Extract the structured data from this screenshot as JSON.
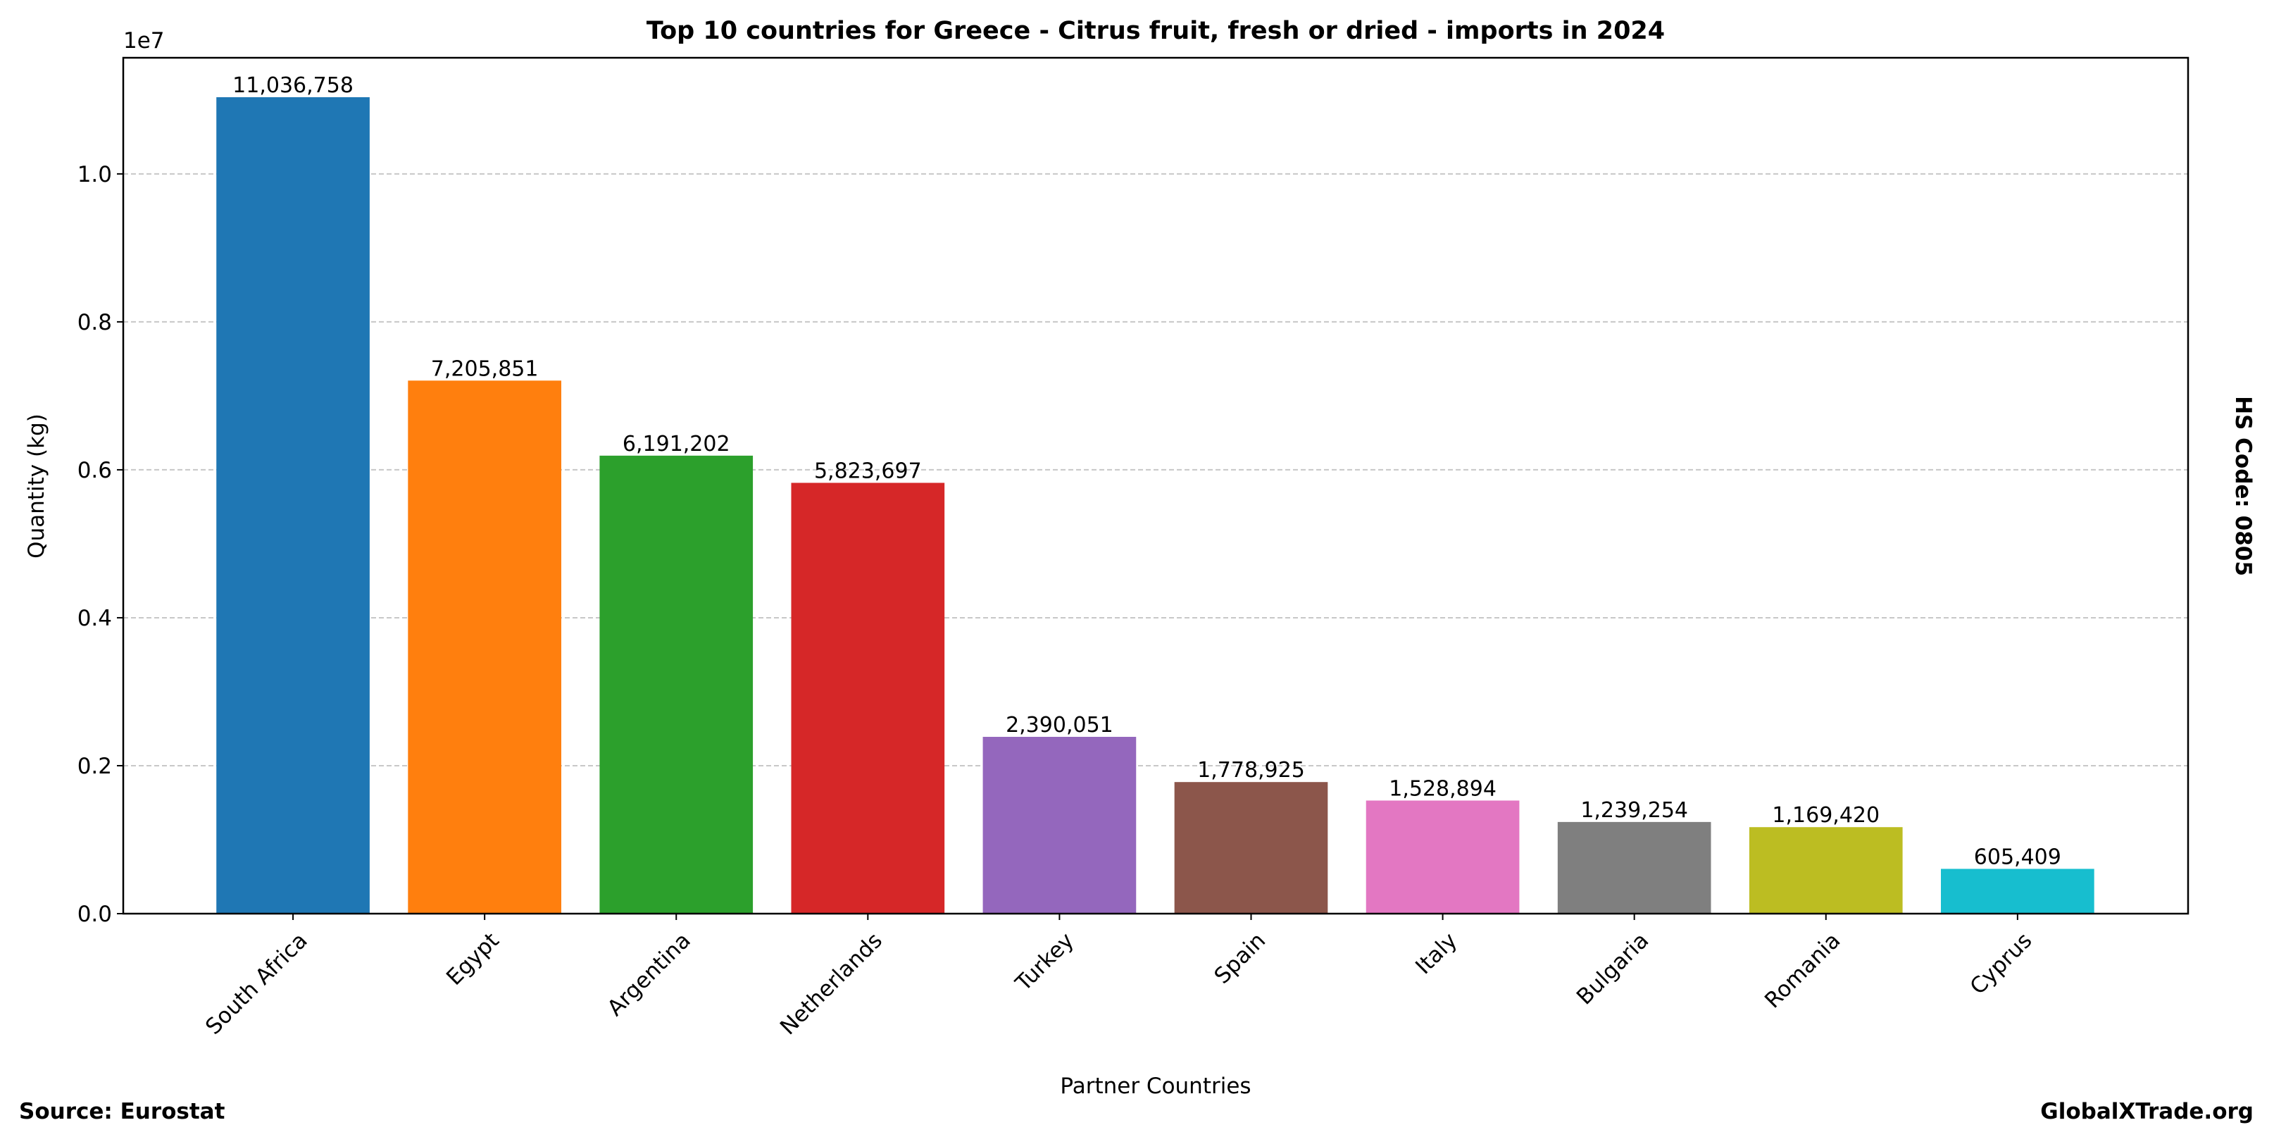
{
  "chart_data": {
    "type": "bar",
    "title": "Top 10 countries for Greece - Citrus fruit, fresh or dried - imports in 2024",
    "xlabel": "Partner Countries",
    "ylabel": "Quantity (kg)",
    "y_offset_label": "1e7",
    "right_label": "HS Code: 0805",
    "source": "Source: Eurostat",
    "watermark": "GlobalXTrade.org",
    "categories": [
      "South Africa",
      "Egypt",
      "Argentina",
      "Netherlands",
      "Turkey",
      "Spain",
      "Italy",
      "Bulgaria",
      "Romania",
      "Cyprus"
    ],
    "values": [
      11036758,
      7205851,
      6191202,
      5823697,
      2390051,
      1778925,
      1528894,
      1239254,
      1169420,
      605409
    ],
    "value_labels": [
      "11,036,758",
      "7,205,851",
      "6,191,202",
      "5,823,697",
      "2,390,051",
      "1,778,925",
      "1,528,894",
      "1,239,254",
      "1,169,420",
      "605,409"
    ],
    "colors": [
      "#1f77b4",
      "#ff7f0e",
      "#2ca02c",
      "#d62728",
      "#9467bd",
      "#8c564b",
      "#e377c2",
      "#7f7f7f",
      "#bcbd22",
      "#17becf"
    ],
    "yticks": [
      0,
      2000000,
      4000000,
      6000000,
      8000000,
      10000000
    ],
    "ytick_labels": [
      "0.0",
      "0.2",
      "0.4",
      "0.6",
      "0.8",
      "1.0"
    ],
    "ylim": [
      0,
      11570000
    ],
    "grid": "y dashed",
    "legend": "none"
  }
}
